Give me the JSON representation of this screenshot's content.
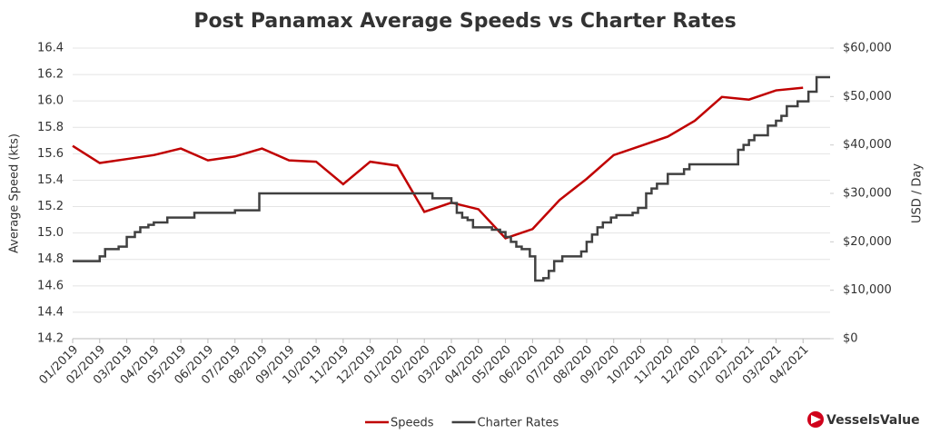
{
  "chart_data": {
    "type": "line",
    "title": "Post Panamax Average Speeds vs Charter Rates",
    "ylabel": "Average Speed (kts)",
    "y2label": "USD / Day",
    "brand": "VesselsValue",
    "xlim": [
      0,
      28
    ],
    "xticks": [
      {
        "value": 0,
        "label": "01/2019"
      },
      {
        "value": 1,
        "label": "02/2019"
      },
      {
        "value": 2,
        "label": "03/2019"
      },
      {
        "value": 3,
        "label": "04/2019"
      },
      {
        "value": 4,
        "label": "05/2019"
      },
      {
        "value": 5,
        "label": "06/2019"
      },
      {
        "value": 6,
        "label": "07/2019"
      },
      {
        "value": 7,
        "label": "08/2019"
      },
      {
        "value": 8,
        "label": "09/2019"
      },
      {
        "value": 9,
        "label": "10/2019"
      },
      {
        "value": 10,
        "label": "11/2019"
      },
      {
        "value": 11,
        "label": "12/2019"
      },
      {
        "value": 12,
        "label": "01/2020"
      },
      {
        "value": 13,
        "label": "02/2020"
      },
      {
        "value": 14,
        "label": "03/2020"
      },
      {
        "value": 15,
        "label": "04/2020"
      },
      {
        "value": 16,
        "label": "05/2020"
      },
      {
        "value": 17,
        "label": "06/2020"
      },
      {
        "value": 18,
        "label": "07/2020"
      },
      {
        "value": 19,
        "label": "08/2020"
      },
      {
        "value": 20,
        "label": "09/2020"
      },
      {
        "value": 21,
        "label": "10/2020"
      },
      {
        "value": 22,
        "label": "11/2020"
      },
      {
        "value": 23,
        "label": "12/2020"
      },
      {
        "value": 24,
        "label": "01/2021"
      },
      {
        "value": 25,
        "label": "02/2021"
      },
      {
        "value": 26,
        "label": "03/2021"
      },
      {
        "value": 27,
        "label": "04/2021"
      }
    ],
    "ylim": [
      14.2,
      16.4
    ],
    "yticks": [
      14.2,
      14.4,
      14.6,
      14.8,
      {
        "value": 15,
        "label": "15.0"
      },
      15.2,
      15.4,
      15.6,
      15.8,
      {
        "value": 16,
        "label": "16.0"
      },
      16.2,
      16.4
    ],
    "y2lim": [
      0,
      60000
    ],
    "y2ticks": [
      {
        "value": 0,
        "label": "$0"
      },
      {
        "value": 10000,
        "label": "$10,000"
      },
      {
        "value": 20000,
        "label": "$20,000"
      },
      {
        "value": 30000,
        "label": "$30,000"
      },
      {
        "value": 40000,
        "label": "$40,000"
      },
      {
        "value": 50000,
        "label": "$50,000"
      },
      {
        "value": 60000,
        "label": "$60,000"
      }
    ],
    "grid": true,
    "legend": "bottom",
    "series": [
      {
        "name": "Speeds",
        "color": "#c00000",
        "axis": "y",
        "x": [
          0,
          1,
          2,
          3,
          4,
          5,
          6,
          7,
          8,
          9,
          10,
          11,
          12,
          13,
          14,
          15,
          16,
          17,
          18,
          19,
          20,
          21,
          22,
          23,
          24,
          25,
          26,
          27
        ],
        "values": [
          15.66,
          15.53,
          15.56,
          15.59,
          15.64,
          15.55,
          15.58,
          15.64,
          15.55,
          15.54,
          15.37,
          15.54,
          15.51,
          15.16,
          15.23,
          15.18,
          14.96,
          15.03,
          15.25,
          15.41,
          15.59,
          15.66,
          15.73,
          15.85,
          16.03,
          16.01,
          16.08,
          16.1
        ]
      },
      {
        "name": "Charter Rates",
        "color": "#404040",
        "axis": "y2",
        "step": "after",
        "x": [
          0,
          1.0,
          1.2,
          1.7,
          2.0,
          2.3,
          2.5,
          2.8,
          3.0,
          3.5,
          4.5,
          6.0,
          6.9,
          13.3,
          14.0,
          14.2,
          14.4,
          14.6,
          14.8,
          15.5,
          15.8,
          16.0,
          16.2,
          16.4,
          16.6,
          16.9,
          17.1,
          17.4,
          17.6,
          17.8,
          18.1,
          18.8,
          19.0,
          19.2,
          19.4,
          19.6,
          19.9,
          20.1,
          20.7,
          20.9,
          21.2,
          21.4,
          21.6,
          22.0,
          22.6,
          22.8,
          24.6,
          24.8,
          25.0,
          25.2,
          25.7,
          26.0,
          26.2,
          26.4,
          26.8,
          27.2,
          27.5,
          28.0
        ],
        "values": [
          16000,
          17000,
          18500,
          19000,
          21000,
          22000,
          23000,
          23500,
          24000,
          25000,
          26000,
          26500,
          30000,
          29000,
          28000,
          26000,
          25000,
          24500,
          23000,
          22500,
          22000,
          21000,
          20000,
          19000,
          18500,
          17000,
          12000,
          12500,
          14000,
          16000,
          17000,
          18000,
          20000,
          21500,
          23000,
          24000,
          25000,
          25500,
          26000,
          27000,
          30000,
          31000,
          32000,
          34000,
          35000,
          36000,
          39000,
          40000,
          41000,
          42000,
          44000,
          45000,
          46000,
          48000,
          49000,
          51000,
          54000,
          54000
        ]
      }
    ]
  }
}
